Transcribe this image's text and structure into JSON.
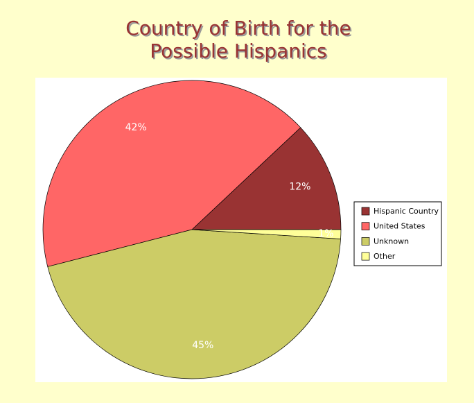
{
  "chart_data": {
    "type": "pie",
    "title": [
      "Country of Birth for the",
      "Possible Hispanics"
    ],
    "categories": [
      "Hispanic Country",
      "United States",
      "Unknown",
      "Other"
    ],
    "values": [
      12,
      42,
      45,
      1
    ],
    "value_labels": [
      "12%",
      "42%",
      "45%",
      "1%"
    ],
    "colors": [
      "#993333",
      "#ff6666",
      "#cccc66",
      "#ffff99"
    ],
    "legend": "right"
  }
}
